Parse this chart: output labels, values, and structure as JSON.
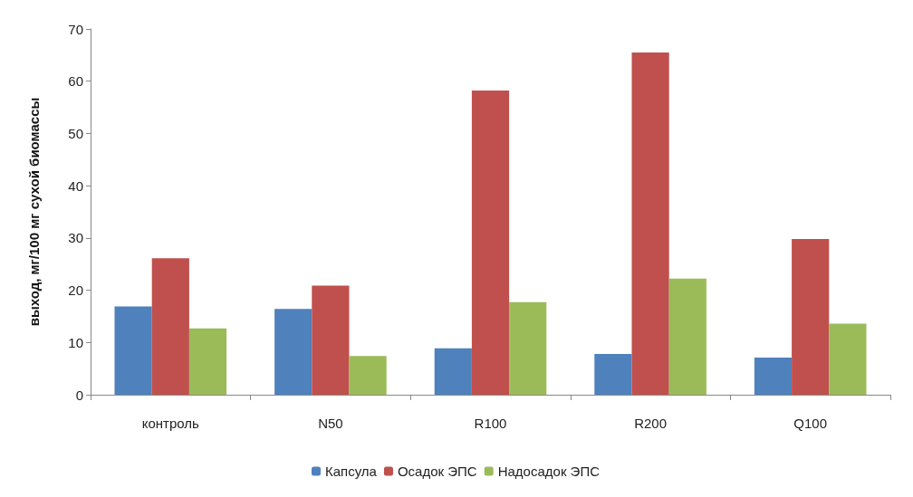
{
  "chart_data": {
    "type": "bar",
    "ylabel": "выход, мг/100 мг сухой биомассы",
    "categories": [
      "контроль",
      "N50",
      "R100",
      "R200",
      "Q100"
    ],
    "series": [
      {
        "name": "Капсула",
        "color": "#4f81bd",
        "values": [
          16.9,
          16.4,
          8.9,
          7.8,
          7.1
        ]
      },
      {
        "name": "Осадок ЭПС",
        "color": "#c0504d",
        "values": [
          26.1,
          20.9,
          58.2,
          65.5,
          29.8
        ]
      },
      {
        "name": "Надосадок ЭПС",
        "color": "#9bbb59",
        "values": [
          12.7,
          7.4,
          17.7,
          22.2,
          13.6
        ]
      }
    ],
    "ylim": [
      0,
      70
    ],
    "yticks": [
      0,
      10,
      20,
      30,
      40,
      50,
      60,
      70
    ],
    "grid": false,
    "legend": "bottom"
  }
}
